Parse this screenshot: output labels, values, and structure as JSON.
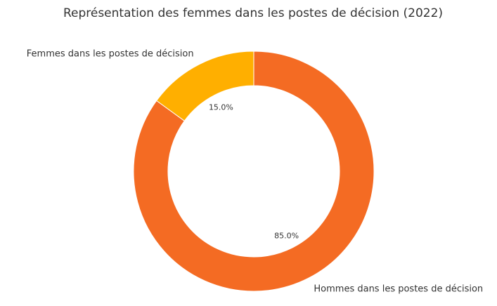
{
  "chart_data": {
    "type": "pie",
    "title": "Représentation des femmes dans les postes de décision (2022)",
    "categories": [
      "Femmes dans les postes de décision",
      "Hommes dans les postes de décision"
    ],
    "values": [
      15.0,
      85.0
    ],
    "value_labels": [
      "15.0%",
      "85.0%"
    ],
    "colors": [
      "#FFAF00",
      "#F46B23"
    ],
    "donut": true,
    "start": "top",
    "direction": "counterclockwise",
    "legend": "none"
  }
}
